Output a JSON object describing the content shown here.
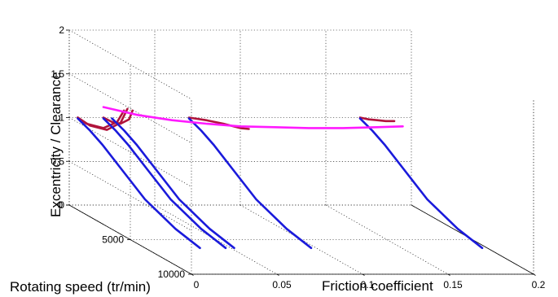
{
  "chart_data": {
    "type": "line3d",
    "xlabel": "Friction coefficient",
    "ylabel": "Rotating speed (tr/min)",
    "zlabel": "Excentricity / Clearance",
    "x_ticks": [
      "0",
      "0.05",
      "0.1",
      "0.15",
      "0.2"
    ],
    "y_ticks": [
      "0",
      "5000",
      "10000"
    ],
    "z_ticks": [
      "0",
      "0.5",
      "1",
      "1.5",
      "2"
    ],
    "xlim": [
      0,
      0.2
    ],
    "ylim": [
      0,
      10000
    ],
    "zlim": [
      0,
      2
    ],
    "grid": true,
    "colors": {
      "eccentricity_curves": "#1a1adb",
      "secondary_curves": "#b0143c",
      "envelope_curve": "#ff1aff"
    },
    "eccentricity_curves": [
      {
        "friction": 0.005,
        "speed": [
          0,
          1000,
          2000,
          3500,
          5500,
          8000,
          10000
        ],
        "excentricity": [
          0.99,
          0.93,
          0.85,
          0.7,
          0.5,
          0.36,
          0.3
        ]
      },
      {
        "friction": 0.02,
        "speed": [
          0,
          1000,
          2000,
          3500,
          5500,
          8000,
          10000
        ],
        "excentricity": [
          0.99,
          0.93,
          0.85,
          0.7,
          0.5,
          0.36,
          0.3
        ]
      },
      {
        "friction": 0.025,
        "speed": [
          0,
          1000,
          2000,
          3500,
          5500,
          8000,
          10000
        ],
        "excentricity": [
          0.99,
          0.93,
          0.85,
          0.7,
          0.5,
          0.36,
          0.3
        ]
      },
      {
        "friction": 0.07,
        "speed": [
          0,
          1000,
          2000,
          3500,
          5500,
          8000,
          10000
        ],
        "excentricity": [
          0.99,
          0.93,
          0.85,
          0.7,
          0.5,
          0.36,
          0.3
        ]
      },
      {
        "friction": 0.17,
        "speed": [
          0,
          1000,
          2000,
          3500,
          5500,
          8000,
          10000
        ],
        "excentricity": [
          0.99,
          0.93,
          0.85,
          0.7,
          0.5,
          0.36,
          0.3
        ]
      }
    ],
    "secondary_curves": [
      {
        "friction": [
          0.005,
          0.01,
          0.02,
          0.028,
          0.032
        ],
        "excentricity": [
          1.0,
          0.93,
          0.88,
          0.95,
          1.08
        ]
      },
      {
        "friction": [
          0.005,
          0.012,
          0.022,
          0.03,
          0.034
        ],
        "excentricity": [
          1.0,
          0.91,
          0.86,
          0.94,
          1.1
        ]
      },
      {
        "friction": [
          0.02,
          0.025,
          0.03,
          0.035,
          0.037
        ],
        "excentricity": [
          1.0,
          0.95,
          0.93,
          0.98,
          1.08
        ]
      },
      {
        "friction": [
          0.07,
          0.08,
          0.09,
          0.1,
          0.105
        ],
        "excentricity": [
          1.0,
          0.97,
          0.93,
          0.88,
          0.87
        ]
      },
      {
        "friction": [
          0.17,
          0.175,
          0.18,
          0.185,
          0.19
        ],
        "excentricity": [
          1.0,
          0.98,
          0.97,
          0.96,
          0.96
        ]
      }
    ],
    "envelope_curve": {
      "speed": 0,
      "friction": [
        0.02,
        0.04,
        0.06,
        0.08,
        0.1,
        0.12,
        0.14,
        0.16,
        0.18,
        0.195
      ],
      "excentricity": [
        1.12,
        1.03,
        0.97,
        0.93,
        0.9,
        0.89,
        0.88,
        0.88,
        0.89,
        0.9
      ]
    }
  }
}
